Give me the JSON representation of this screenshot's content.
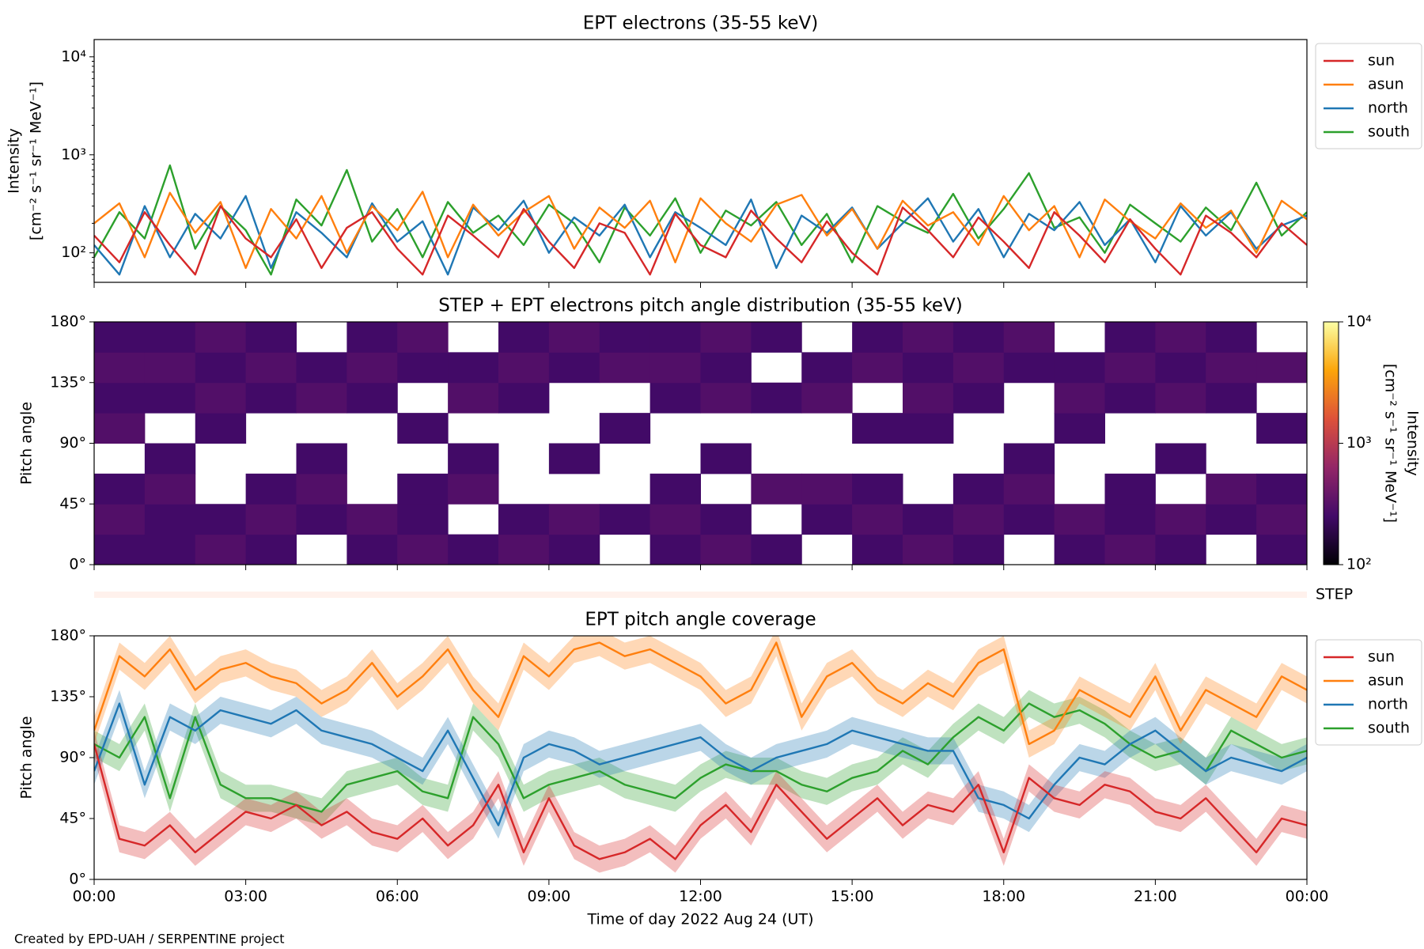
{
  "chart_data": [
    {
      "type": "line",
      "title": "EPT electrons (35-55 keV)",
      "ylabel": [
        "Intensity",
        "[cm⁻² s⁻¹ sr⁻¹ MeV⁻¹]"
      ],
      "log_y": true,
      "ylim": [
        50,
        15000
      ],
      "yticks": [
        {
          "value": 100,
          "label": "10²"
        },
        {
          "value": 1000,
          "label": "10³"
        },
        {
          "value": 10000,
          "label": "10⁴"
        }
      ],
      "xlim": [
        0,
        24
      ],
      "legend": "outside-right",
      "x": [
        0,
        0.5,
        1,
        1.5,
        2,
        2.5,
        3,
        3.5,
        4,
        4.5,
        5,
        5.5,
        6,
        6.5,
        7,
        7.5,
        8,
        8.5,
        9,
        9.5,
        10,
        10.5,
        11,
        11.5,
        12,
        12.5,
        13,
        13.5,
        14,
        14.5,
        15,
        15.5,
        16,
        16.5,
        17,
        17.5,
        18,
        18.5,
        19,
        19.5,
        20,
        20.5,
        21,
        21.5,
        22,
        22.5,
        23,
        23.5,
        24
      ],
      "series": [
        {
          "name": "sun",
          "color": "#d62728",
          "values": [
            150,
            80,
            260,
            120,
            60,
            300,
            140,
            90,
            220,
            70,
            180,
            260,
            110,
            60,
            240,
            150,
            90,
            280,
            130,
            70,
            200,
            160,
            60,
            250,
            120,
            90,
            270,
            140,
            80,
            210,
            100,
            60,
            290,
            170,
            90,
            230,
            130,
            70,
            260,
            150,
            80,
            220,
            110,
            60,
            240,
            160,
            90,
            200,
            120
          ]
        },
        {
          "name": "asun",
          "color": "#ff7f0e",
          "values": [
            200,
            320,
            90,
            410,
            160,
            330,
            70,
            280,
            140,
            380,
            100,
            300,
            170,
            420,
            90,
            310,
            150,
            260,
            380,
            110,
            290,
            180,
            340,
            80,
            360,
            200,
            130,
            310,
            390,
            150,
            280,
            110,
            340,
            190,
            260,
            120,
            380,
            170,
            300,
            90,
            350,
            210,
            140,
            320,
            180,
            270,
            100,
            340,
            220
          ]
        },
        {
          "name": "north",
          "color": "#1f77b4",
          "values": [
            120,
            60,
            300,
            90,
            250,
            140,
            380,
            70,
            260,
            160,
            90,
            320,
            130,
            210,
            60,
            290,
            170,
            340,
            100,
            230,
            150,
            310,
            90,
            260,
            180,
            120,
            350,
            70,
            240,
            160,
            290,
            110,
            200,
            360,
            130,
            280,
            90,
            250,
            170,
            330,
            120,
            220,
            80,
            300,
            150,
            260,
            110,
            190,
            240
          ]
        },
        {
          "name": "south",
          "color": "#2ca02c",
          "values": [
            90,
            260,
            140,
            780,
            110,
            300,
            170,
            60,
            350,
            190,
            700,
            130,
            280,
            90,
            330,
            160,
            240,
            120,
            310,
            200,
            80,
            290,
            150,
            360,
            100,
            270,
            190,
            330,
            120,
            250,
            80,
            300,
            210,
            160,
            400,
            140,
            280,
            650,
            180,
            230,
            100,
            310,
            200,
            130,
            290,
            170,
            520,
            150,
            260
          ]
        }
      ]
    },
    {
      "type": "heatmap",
      "title": "STEP + EPT electrons pitch angle distribution (35-55 keV)",
      "ylabel": "Pitch angle",
      "xlim": [
        0,
        24
      ],
      "ylim": [
        0,
        180
      ],
      "yticks": [
        {
          "value": 0,
          "label": "0°"
        },
        {
          "value": 45,
          "label": "45°"
        },
        {
          "value": 90,
          "label": "90°"
        },
        {
          "value": 135,
          "label": "135°"
        },
        {
          "value": 180,
          "label": "180°"
        }
      ],
      "x_edges": [
        0,
        1,
        2,
        3,
        4,
        5,
        6,
        7,
        8,
        9,
        10,
        11,
        12,
        13,
        14,
        15,
        16,
        17,
        18,
        19,
        20,
        21,
        22,
        23,
        24
      ],
      "y_edges": [
        0,
        22.5,
        45,
        67.5,
        90,
        112.5,
        135,
        157.5,
        180
      ],
      "z": [
        [
          250,
          300,
          250,
          null,
          300,
          250,
          300,
          250
        ],
        [
          250,
          250,
          300,
          250,
          null,
          250,
          300,
          250
        ],
        [
          300,
          250,
          null,
          null,
          250,
          300,
          250,
          300
        ],
        [
          250,
          300,
          250,
          null,
          null,
          250,
          300,
          250
        ],
        [
          null,
          250,
          300,
          250,
          null,
          300,
          250,
          null
        ],
        [
          250,
          300,
          null,
          null,
          null,
          250,
          300,
          250
        ],
        [
          300,
          250,
          250,
          null,
          250,
          null,
          250,
          300
        ],
        [
          250,
          null,
          300,
          250,
          null,
          300,
          250,
          null
        ],
        [
          300,
          250,
          null,
          null,
          null,
          250,
          300,
          250
        ],
        [
          250,
          300,
          null,
          250,
          null,
          null,
          250,
          300
        ],
        [
          null,
          250,
          null,
          null,
          250,
          null,
          300,
          250
        ],
        [
          250,
          300,
          250,
          null,
          null,
          250,
          300,
          250
        ],
        [
          300,
          250,
          null,
          250,
          null,
          300,
          250,
          300
        ],
        [
          250,
          null,
          300,
          null,
          null,
          250,
          null,
          250
        ],
        [
          null,
          250,
          300,
          null,
          null,
          300,
          250,
          null
        ],
        [
          250,
          300,
          250,
          null,
          250,
          null,
          300,
          250
        ],
        [
          300,
          250,
          null,
          null,
          250,
          300,
          250,
          300
        ],
        [
          250,
          300,
          250,
          null,
          null,
          250,
          300,
          250
        ],
        [
          null,
          250,
          300,
          250,
          null,
          null,
          250,
          300
        ],
        [
          250,
          300,
          null,
          null,
          250,
          300,
          250,
          null
        ],
        [
          300,
          250,
          250,
          null,
          null,
          250,
          300,
          250
        ],
        [
          250,
          300,
          null,
          250,
          null,
          300,
          250,
          300
        ],
        [
          null,
          250,
          300,
          null,
          null,
          250,
          300,
          250
        ],
        [
          250,
          300,
          250,
          null,
          250,
          null,
          300,
          null
        ]
      ],
      "colorbar": {
        "label": [
          "Intensity",
          "[cm⁻² s⁻¹ sr⁻¹ MeV⁻¹]"
        ],
        "log": true,
        "lim": [
          100,
          10000
        ],
        "ticks": [
          {
            "value": 100,
            "label": "10²"
          },
          {
            "value": 1000,
            "label": "10³"
          },
          {
            "value": 10000,
            "label": "10⁴"
          }
        ],
        "colormap": [
          "#000004",
          "#420a68",
          "#932667",
          "#dd513a",
          "#fca50a",
          "#fcffa4"
        ]
      },
      "step_label": "STEP",
      "step_color": "#fff1ec"
    },
    {
      "type": "line",
      "title": "EPT pitch angle coverage",
      "ylabel": "Pitch angle",
      "xlabel": "Time of day 2022 Aug 24 (UT)",
      "xlim": [
        0,
        24
      ],
      "ylim": [
        0,
        180
      ],
      "legend": "outside-right",
      "yticks": [
        {
          "value": 0,
          "label": "0°"
        },
        {
          "value": 45,
          "label": "45°"
        },
        {
          "value": 90,
          "label": "90°"
        },
        {
          "value": 135,
          "label": "135°"
        },
        {
          "value": 180,
          "label": "180°"
        }
      ],
      "xticks": [
        {
          "value": 0,
          "label": "00:00"
        },
        {
          "value": 3,
          "label": "03:00"
        },
        {
          "value": 6,
          "label": "06:00"
        },
        {
          "value": 9,
          "label": "09:00"
        },
        {
          "value": 12,
          "label": "12:00"
        },
        {
          "value": 15,
          "label": "15:00"
        },
        {
          "value": 18,
          "label": "18:00"
        },
        {
          "value": 21,
          "label": "21:00"
        },
        {
          "value": 24,
          "label": "00:00"
        }
      ],
      "x": [
        0,
        0.5,
        1,
        1.5,
        2,
        2.5,
        3,
        3.5,
        4,
        4.5,
        5,
        5.5,
        6,
        6.5,
        7,
        7.5,
        8,
        8.5,
        9,
        9.5,
        10,
        10.5,
        11,
        11.5,
        12,
        12.5,
        13,
        13.5,
        14,
        14.5,
        15,
        15.5,
        16,
        16.5,
        17,
        17.5,
        18,
        18.5,
        19,
        19.5,
        20,
        20.5,
        21,
        21.5,
        22,
        22.5,
        23,
        23.5,
        24
      ],
      "series": [
        {
          "name": "sun",
          "color": "#d62728",
          "error": 10,
          "values": [
            100,
            30,
            25,
            40,
            20,
            35,
            50,
            45,
            55,
            40,
            50,
            35,
            30,
            45,
            25,
            40,
            70,
            20,
            60,
            25,
            15,
            20,
            30,
            15,
            40,
            55,
            35,
            70,
            50,
            30,
            45,
            60,
            40,
            55,
            50,
            70,
            20,
            75,
            60,
            55,
            70,
            65,
            50,
            45,
            60,
            40,
            20,
            45,
            40
          ]
        },
        {
          "name": "asun",
          "color": "#ff7f0e",
          "error": 10,
          "values": [
            110,
            165,
            150,
            170,
            140,
            155,
            160,
            150,
            145,
            130,
            140,
            160,
            135,
            150,
            170,
            140,
            120,
            165,
            150,
            170,
            175,
            165,
            170,
            160,
            150,
            130,
            140,
            175,
            120,
            150,
            160,
            140,
            130,
            145,
            135,
            160,
            170,
            100,
            110,
            140,
            130,
            120,
            150,
            110,
            140,
            130,
            120,
            150,
            140
          ]
        },
        {
          "name": "north",
          "color": "#1f77b4",
          "error": 10,
          "values": [
            80,
            130,
            70,
            120,
            110,
            125,
            120,
            115,
            125,
            110,
            105,
            100,
            90,
            80,
            110,
            75,
            40,
            90,
            100,
            95,
            85,
            90,
            95,
            100,
            105,
            90,
            80,
            90,
            95,
            100,
            110,
            105,
            100,
            95,
            95,
            60,
            55,
            45,
            70,
            90,
            85,
            100,
            110,
            95,
            80,
            90,
            85,
            80,
            90
          ]
        },
        {
          "name": "south",
          "color": "#2ca02c",
          "error": 10,
          "values": [
            100,
            90,
            120,
            60,
            120,
            70,
            60,
            60,
            55,
            50,
            70,
            75,
            80,
            65,
            60,
            120,
            100,
            60,
            70,
            75,
            80,
            70,
            65,
            60,
            75,
            85,
            80,
            80,
            70,
            65,
            75,
            80,
            95,
            85,
            105,
            120,
            110,
            130,
            120,
            125,
            115,
            100,
            90,
            95,
            80,
            110,
            100,
            90,
            95
          ]
        }
      ]
    }
  ],
  "credit": "Created by EPD-UAH / SERPENTINE project"
}
